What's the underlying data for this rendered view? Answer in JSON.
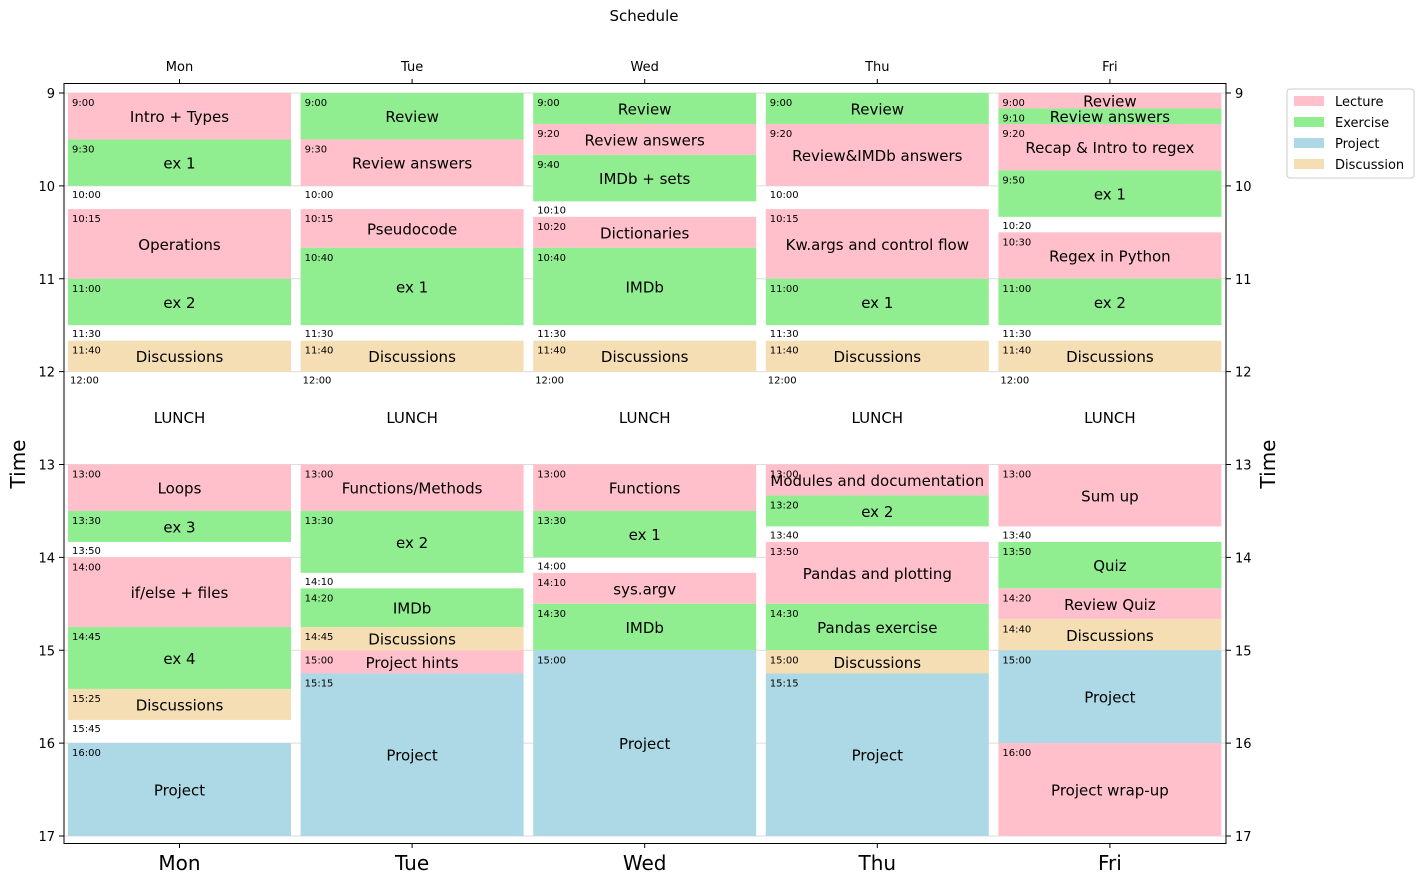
{
  "chart_data": {
    "type": "table",
    "title": "Schedule",
    "ylabel": "Time",
    "ylim": [
      9,
      17
    ],
    "yticks": [
      "9",
      "10",
      "11",
      "12",
      "13",
      "14",
      "15",
      "16",
      "17"
    ],
    "days": [
      "Mon",
      "Tue",
      "Wed",
      "Thu",
      "Fri"
    ],
    "lunch_label": "LUNCH",
    "lunch_time": "12:00",
    "grid": true,
    "legend_position": "outside-top-right",
    "categories": [
      {
        "name": "Lecture",
        "color": "#ffc0cb"
      },
      {
        "name": "Exercise",
        "color": "#90ee90"
      },
      {
        "name": "Project",
        "color": "#add8e6"
      },
      {
        "name": "Discussion",
        "color": "#f5deb3"
      }
    ],
    "events": {
      "Mon": [
        {
          "start": "9:00",
          "end": "9:30",
          "title": "Intro + Types",
          "type": "Lecture"
        },
        {
          "start": "9:30",
          "end": "10:00",
          "title": "ex 1",
          "type": "Exercise"
        },
        {
          "start": "10:15",
          "end": "11:00",
          "title": "Operations",
          "type": "Lecture"
        },
        {
          "start": "11:00",
          "end": "11:30",
          "title": "ex 2",
          "type": "Exercise"
        },
        {
          "start": "11:40",
          "end": "12:00",
          "title": "Discussions",
          "type": "Discussion"
        },
        {
          "start": "13:00",
          "end": "13:30",
          "title": "Loops",
          "type": "Lecture"
        },
        {
          "start": "13:30",
          "end": "13:50",
          "title": "ex 3",
          "type": "Exercise"
        },
        {
          "start": "14:00",
          "end": "14:45",
          "title": "if/else + files",
          "type": "Lecture"
        },
        {
          "start": "14:45",
          "end": "15:25",
          "title": "ex 4",
          "type": "Exercise"
        },
        {
          "start": "15:25",
          "end": "15:45",
          "title": "Discussions",
          "type": "Discussion"
        },
        {
          "start": "16:00",
          "end": "17:00",
          "title": "Project",
          "type": "Project"
        }
      ],
      "Tue": [
        {
          "start": "9:00",
          "end": "9:30",
          "title": "Review",
          "type": "Exercise"
        },
        {
          "start": "9:30",
          "end": "10:00",
          "title": "Review answers",
          "type": "Lecture"
        },
        {
          "start": "10:15",
          "end": "10:40",
          "title": "Pseudocode",
          "type": "Lecture"
        },
        {
          "start": "10:40",
          "end": "11:30",
          "title": "ex 1",
          "type": "Exercise"
        },
        {
          "start": "11:40",
          "end": "12:00",
          "title": "Discussions",
          "type": "Discussion"
        },
        {
          "start": "13:00",
          "end": "13:30",
          "title": "Functions/Methods",
          "type": "Lecture"
        },
        {
          "start": "13:30",
          "end": "14:10",
          "title": "ex 2",
          "type": "Exercise"
        },
        {
          "start": "14:20",
          "end": "14:45",
          "title": "IMDb",
          "type": "Exercise"
        },
        {
          "start": "14:45",
          "end": "15:00",
          "title": "Discussions",
          "type": "Discussion"
        },
        {
          "start": "15:00",
          "end": "15:15",
          "title": "Project hints",
          "type": "Lecture"
        },
        {
          "start": "15:15",
          "end": "17:00",
          "title": "Project",
          "type": "Project"
        }
      ],
      "Wed": [
        {
          "start": "9:00",
          "end": "9:20",
          "title": "Review",
          "type": "Exercise"
        },
        {
          "start": "9:20",
          "end": "9:40",
          "title": "Review answers",
          "type": "Lecture"
        },
        {
          "start": "9:40",
          "end": "10:10",
          "title": "IMDb + sets",
          "type": "Exercise"
        },
        {
          "start": "10:20",
          "end": "10:40",
          "title": "Dictionaries",
          "type": "Lecture"
        },
        {
          "start": "10:40",
          "end": "11:30",
          "title": "IMDb",
          "type": "Exercise"
        },
        {
          "start": "11:40",
          "end": "12:00",
          "title": "Discussions",
          "type": "Discussion"
        },
        {
          "start": "13:00",
          "end": "13:30",
          "title": "Functions",
          "type": "Lecture"
        },
        {
          "start": "13:30",
          "end": "14:00",
          "title": "ex 1",
          "type": "Exercise"
        },
        {
          "start": "14:10",
          "end": "14:30",
          "title": "sys.argv",
          "type": "Lecture"
        },
        {
          "start": "14:30",
          "end": "15:00",
          "title": "IMDb",
          "type": "Exercise"
        },
        {
          "start": "15:00",
          "end": "17:00",
          "title": "Project",
          "type": "Project"
        }
      ],
      "Thu": [
        {
          "start": "9:00",
          "end": "9:20",
          "title": "Review",
          "type": "Exercise"
        },
        {
          "start": "9:20",
          "end": "10:00",
          "title": "Review&IMDb answers",
          "type": "Lecture"
        },
        {
          "start": "10:15",
          "end": "11:00",
          "title": "Kw.args and control flow",
          "type": "Lecture"
        },
        {
          "start": "11:00",
          "end": "11:30",
          "title": "ex 1",
          "type": "Exercise"
        },
        {
          "start": "11:40",
          "end": "12:00",
          "title": "Discussions",
          "type": "Discussion"
        },
        {
          "start": "13:00",
          "end": "13:20",
          "title": "Modules and documentation",
          "type": "Lecture"
        },
        {
          "start": "13:20",
          "end": "13:40",
          "title": "ex 2",
          "type": "Exercise"
        },
        {
          "start": "13:50",
          "end": "14:30",
          "title": "Pandas and plotting",
          "type": "Lecture"
        },
        {
          "start": "14:30",
          "end": "15:00",
          "title": "Pandas exercise",
          "type": "Exercise"
        },
        {
          "start": "15:00",
          "end": "15:15",
          "title": "Discussions",
          "type": "Discussion"
        },
        {
          "start": "15:15",
          "end": "17:00",
          "title": "Project",
          "type": "Project"
        }
      ],
      "Fri": [
        {
          "start": "9:00",
          "end": "9:10",
          "title": "Review",
          "type": "Lecture"
        },
        {
          "start": "9:10",
          "end": "9:20",
          "title": "Review answers",
          "type": "Exercise"
        },
        {
          "start": "9:20",
          "end": "9:50",
          "title": "Recap & Intro to regex",
          "type": "Lecture"
        },
        {
          "start": "9:50",
          "end": "10:20",
          "title": "ex 1",
          "type": "Exercise"
        },
        {
          "start": "10:30",
          "end": "11:00",
          "title": "Regex in Python",
          "type": "Lecture"
        },
        {
          "start": "11:00",
          "end": "11:30",
          "title": "ex 2",
          "type": "Exercise"
        },
        {
          "start": "11:40",
          "end": "12:00",
          "title": "Discussions",
          "type": "Discussion"
        },
        {
          "start": "13:00",
          "end": "13:40",
          "title": "Sum up",
          "type": "Lecture"
        },
        {
          "start": "13:50",
          "end": "14:20",
          "title": "Quiz",
          "type": "Exercise"
        },
        {
          "start": "14:20",
          "end": "14:40",
          "title": "Review Quiz",
          "type": "Lecture"
        },
        {
          "start": "14:40",
          "end": "15:00",
          "title": "Discussions",
          "type": "Discussion"
        },
        {
          "start": "15:00",
          "end": "16:00",
          "title": "Project",
          "type": "Project"
        },
        {
          "start": "16:00",
          "end": "17:00",
          "title": "Project wrap-up",
          "type": "Lecture"
        }
      ]
    }
  }
}
